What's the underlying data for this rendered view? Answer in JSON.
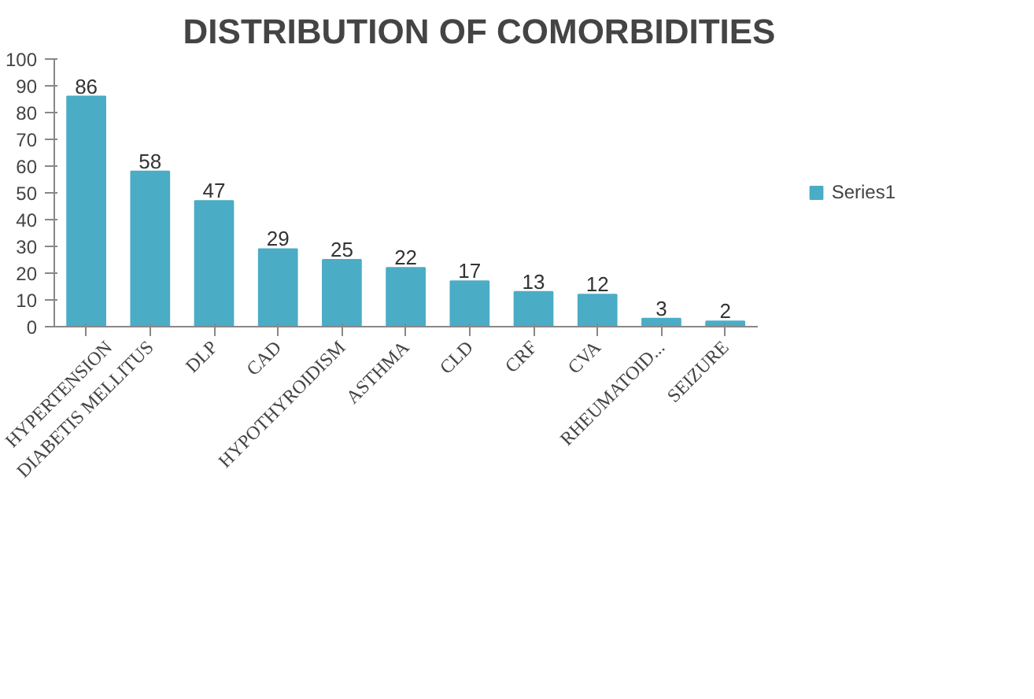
{
  "chart_data": {
    "type": "bar",
    "title": "DISTRIBUTION OF COMORBIDITIES",
    "categories": [
      "HYPERTENSION",
      "DIABETIS MELLITUS",
      "DLP",
      "CAD",
      "HYPOTHYROIDISM",
      "ASTHMA",
      "CLD",
      "CRF",
      "CVA",
      "RHEUMATOID...",
      "SEIZURE"
    ],
    "series": [
      {
        "name": "Series1",
        "color": "#4bacc6",
        "values": [
          86,
          58,
          47,
          29,
          25,
          22,
          17,
          13,
          12,
          3,
          2
        ]
      }
    ],
    "ylim": [
      0,
      100
    ],
    "yticks": [
      0,
      10,
      20,
      30,
      40,
      50,
      60,
      70,
      80,
      90,
      100
    ],
    "data_labels": true,
    "grid": false,
    "legend": "right"
  }
}
